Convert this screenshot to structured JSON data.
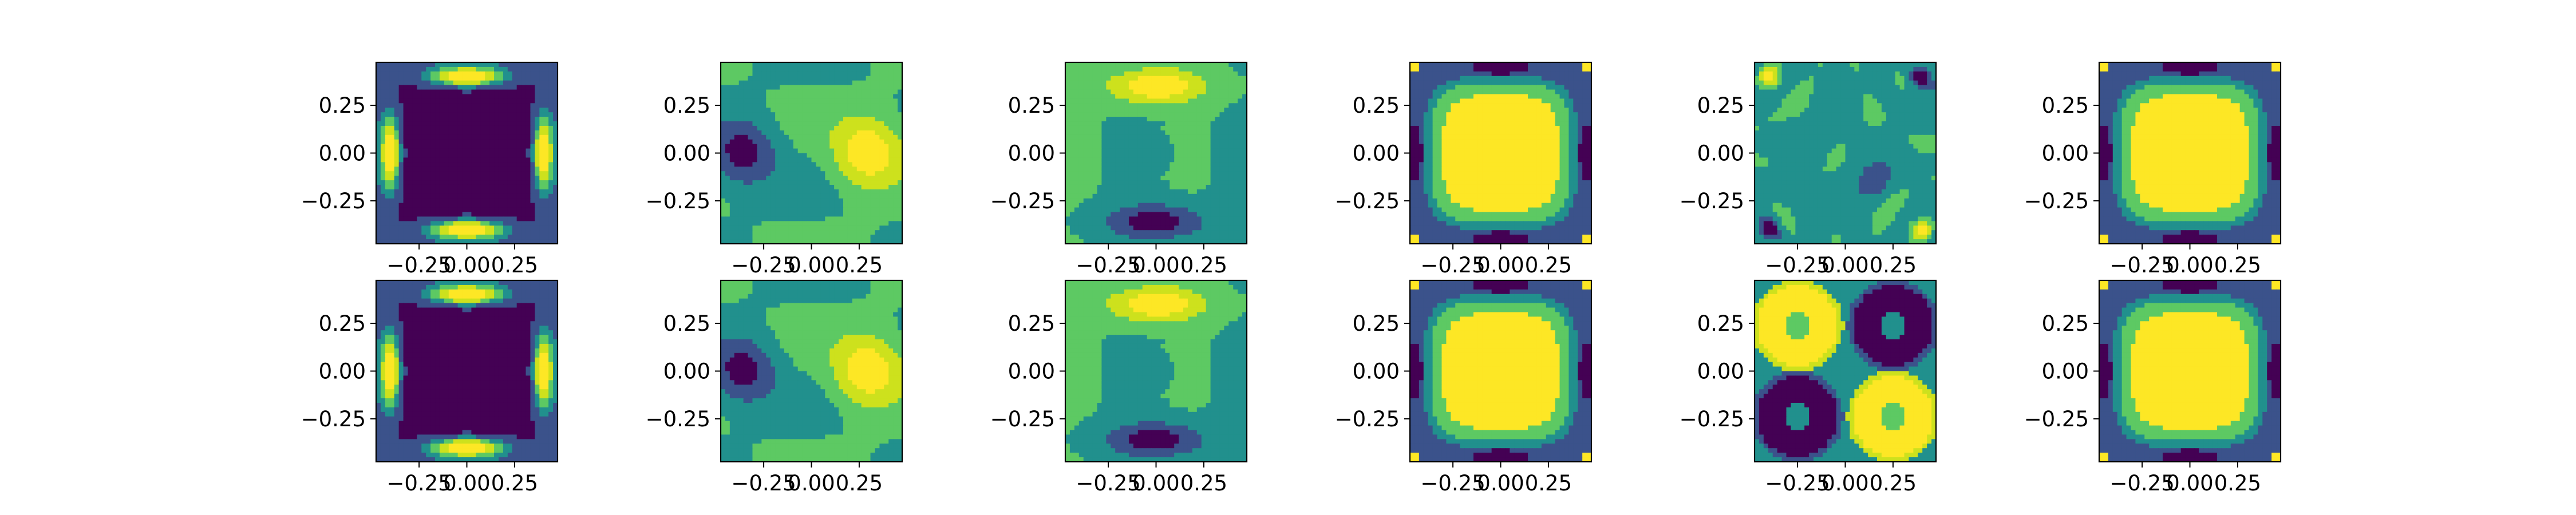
{
  "chart_data": [
    {
      "type": "heatmap",
      "pattern": "edge_ring",
      "row": 1,
      "col": 1,
      "x_ticks": [
        "−0.25",
        "0.00",
        "0.25"
      ],
      "y_ticks": [
        "0.25",
        "0.00",
        "−0.25"
      ]
    },
    {
      "type": "heatmap",
      "pattern": "x_dipole",
      "row": 1,
      "col": 2,
      "x_ticks": [
        "−0.25",
        "0.00",
        "0.25"
      ],
      "y_ticks": [
        "0.25",
        "0.00",
        "−0.25"
      ]
    },
    {
      "type": "heatmap",
      "pattern": "y_dipole",
      "row": 1,
      "col": 3,
      "x_ticks": [
        "−0.25",
        "0.00",
        "0.25"
      ],
      "y_ticks": [
        "0.25",
        "0.00",
        "−0.25"
      ]
    },
    {
      "type": "heatmap",
      "pattern": "center_high",
      "row": 1,
      "col": 4,
      "x_ticks": [
        "−0.25",
        "0.00",
        "0.25"
      ],
      "y_ticks": [
        "0.25",
        "0.00",
        "−0.25"
      ]
    },
    {
      "type": "heatmap",
      "pattern": "corner_noise",
      "row": 1,
      "col": 5,
      "x_ticks": [
        "−0.25",
        "0.00",
        "0.25"
      ],
      "y_ticks": [
        "0.25",
        "0.00",
        "−0.25"
      ]
    },
    {
      "type": "heatmap",
      "pattern": "center_high",
      "row": 1,
      "col": 6,
      "x_ticks": [
        "−0.25",
        "0.00",
        "0.25"
      ],
      "y_ticks": [
        "0.25",
        "0.00",
        "−0.25"
      ]
    },
    {
      "type": "heatmap",
      "pattern": "edge_ring",
      "row": 2,
      "col": 1,
      "x_ticks": [
        "−0.25",
        "0.00",
        "0.25"
      ],
      "y_ticks": [
        "0.25",
        "0.00",
        "−0.25"
      ]
    },
    {
      "type": "heatmap",
      "pattern": "x_dipole",
      "row": 2,
      "col": 2,
      "x_ticks": [
        "−0.25",
        "0.00",
        "0.25"
      ],
      "y_ticks": [
        "0.25",
        "0.00",
        "−0.25"
      ]
    },
    {
      "type": "heatmap",
      "pattern": "y_dipole",
      "row": 2,
      "col": 3,
      "x_ticks": [
        "−0.25",
        "0.00",
        "0.25"
      ],
      "y_ticks": [
        "0.25",
        "0.00",
        "−0.25"
      ]
    },
    {
      "type": "heatmap",
      "pattern": "center_high",
      "row": 2,
      "col": 4,
      "x_ticks": [
        "−0.25",
        "0.00",
        "0.25"
      ],
      "y_ticks": [
        "0.25",
        "0.00",
        "−0.25"
      ]
    },
    {
      "type": "heatmap",
      "pattern": "quadrant_rings",
      "row": 2,
      "col": 5,
      "x_ticks": [
        "−0.25",
        "0.00",
        "0.25"
      ],
      "y_ticks": [
        "0.25",
        "0.00",
        "−0.25"
      ]
    },
    {
      "type": "heatmap",
      "pattern": "center_high",
      "row": 2,
      "col": 6,
      "x_ticks": [
        "−0.25",
        "0.00",
        "0.25"
      ],
      "y_ticks": [
        "0.25",
        "0.00",
        "−0.25"
      ]
    }
  ],
  "colormap": [
    "#440154",
    "#3b528b",
    "#21908d",
    "#5dc963",
    "#cde11d",
    "#fde725"
  ]
}
